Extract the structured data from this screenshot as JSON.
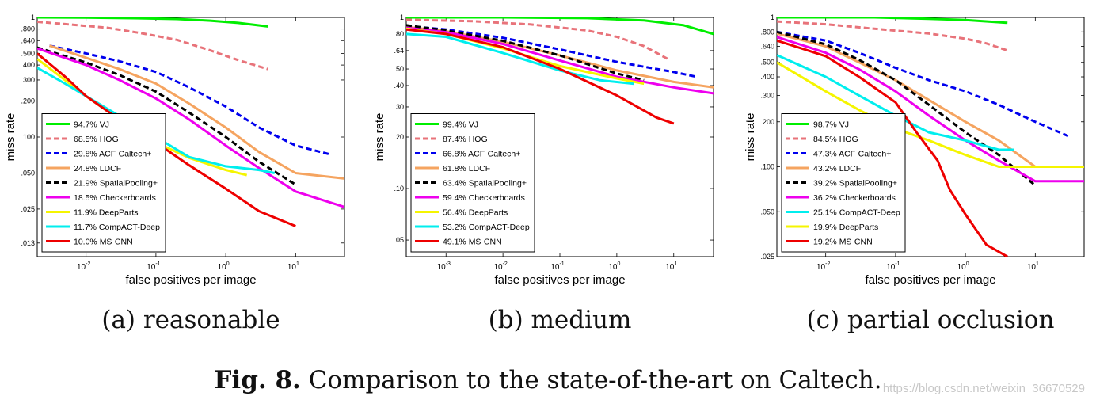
{
  "figure": {
    "fig_label": "Fig. 8.",
    "caption": "Comparison to the state-of-the-art on Caltech.",
    "watermark": "https://blog.csdn.net/weixin_36670529"
  },
  "colors": {
    "VJ": "#00ee00",
    "HOG": "#e8737a",
    "ACF-Caltech+": "#0000ee",
    "LDCF": "#f5a460",
    "SpatialPooling+": "#000000",
    "Checkerboards": "#ee00ee",
    "DeepParts": "#f5f500",
    "CompACT-Deep": "#00eeee",
    "MS-CNN": "#ee0000"
  },
  "chart_data": [
    {
      "type": "line",
      "subtitle": "(a) reasonable",
      "xlabel": "false positives per image",
      "ylabel": "miss rate",
      "xscale": "log",
      "yscale": "log",
      "xlim": [
        0.002,
        50
      ],
      "ylim": [
        0.01,
        1
      ],
      "xtick_labels": [
        "10^-2",
        "10^-1",
        "10^0",
        "10^1"
      ],
      "xtick_values": [
        0.01,
        0.1,
        1,
        10
      ],
      "ytick_labels": [
        "1",
        ".800",
        ".640",
        ".500",
        ".400",
        ".300",
        ".200",
        ".100",
        ".050",
        ".025",
        ".013"
      ],
      "ytick_values": [
        1,
        0.8,
        0.64,
        0.5,
        0.4,
        0.3,
        0.2,
        0.1,
        0.05,
        0.025,
        0.013
      ],
      "legend_position": "bottom-left",
      "series": [
        {
          "name": "94.7% VJ",
          "key": "VJ",
          "dash": "solid",
          "x": [
            0.002,
            0.01,
            0.05,
            0.2,
            0.6,
            1.5,
            4
          ],
          "y": [
            1,
            0.995,
            0.985,
            0.97,
            0.94,
            0.9,
            0.84
          ]
        },
        {
          "name": "68.5% HOG",
          "key": "HOG",
          "dash": "dash",
          "x": [
            0.002,
            0.005,
            0.02,
            0.06,
            0.2,
            0.6,
            1.5,
            4
          ],
          "y": [
            0.92,
            0.88,
            0.82,
            0.74,
            0.65,
            0.53,
            0.44,
            0.37
          ]
        },
        {
          "name": "29.8% ACF-Caltech+",
          "key": "ACF-Caltech+",
          "dash": "dash",
          "x": [
            0.003,
            0.01,
            0.03,
            0.1,
            0.3,
            1,
            3,
            10,
            30
          ],
          "y": [
            0.58,
            0.5,
            0.43,
            0.35,
            0.26,
            0.18,
            0.12,
            0.085,
            0.072
          ]
        },
        {
          "name": "24.8% LDCF",
          "key": "LDCF",
          "dash": "solid",
          "x": [
            0.003,
            0.01,
            0.03,
            0.1,
            0.3,
            1,
            3,
            10,
            50
          ],
          "y": [
            0.58,
            0.46,
            0.37,
            0.28,
            0.19,
            0.12,
            0.075,
            0.05,
            0.045
          ]
        },
        {
          "name": "21.9% SpatialPooling+",
          "key": "SpatialPooling+",
          "dash": "dash",
          "x": [
            0.002,
            0.01,
            0.03,
            0.1,
            0.3,
            1,
            3,
            10
          ],
          "y": [
            0.56,
            0.42,
            0.33,
            0.24,
            0.16,
            0.1,
            0.062,
            0.04
          ]
        },
        {
          "name": "18.5% Checkerboards",
          "key": "Checkerboards",
          "dash": "solid",
          "x": [
            0.002,
            0.01,
            0.03,
            0.1,
            0.3,
            1,
            3,
            10,
            50
          ],
          "y": [
            0.55,
            0.4,
            0.3,
            0.21,
            0.14,
            0.085,
            0.055,
            0.035,
            0.026
          ]
        },
        {
          "name": "11.9% DeepParts",
          "key": "DeepParts",
          "dash": "solid",
          "x": [
            0.002,
            0.005,
            0.01,
            0.03,
            0.1,
            0.3,
            1,
            2
          ],
          "y": [
            0.45,
            0.3,
            0.22,
            0.14,
            0.09,
            0.067,
            0.053,
            0.048
          ]
        },
        {
          "name": "11.7% CompACT-Deep",
          "key": "CompACT-Deep",
          "dash": "solid",
          "x": [
            0.002,
            0.005,
            0.01,
            0.03,
            0.1,
            0.3,
            1,
            3,
            5
          ],
          "y": [
            0.38,
            0.28,
            0.22,
            0.15,
            0.1,
            0.068,
            0.057,
            0.053,
            0.05
          ]
        },
        {
          "name": "10.0% MS-CNN",
          "key": "MS-CNN",
          "dash": "solid",
          "x": [
            0.002,
            0.005,
            0.01,
            0.03,
            0.1,
            0.3,
            1,
            3,
            10
          ],
          "y": [
            0.5,
            0.32,
            0.22,
            0.14,
            0.09,
            0.058,
            0.037,
            0.024,
            0.018
          ]
        }
      ]
    },
    {
      "type": "line",
      "subtitle": "(b) medium",
      "xlabel": "false positives per image",
      "ylabel": "miss rate",
      "xscale": "log",
      "yscale": "log",
      "xlim": [
        0.0002,
        50
      ],
      "ylim": [
        0.04,
        1
      ],
      "xtick_labels": [
        "10^-3",
        "10^-2",
        "10^-1",
        "10^0",
        "10^1"
      ],
      "xtick_values": [
        0.001,
        0.01,
        0.1,
        1,
        10
      ],
      "ytick_labels": [
        "1",
        ".80",
        ".64",
        ".50",
        ".40",
        ".30",
        ".20",
        ".10",
        ".05"
      ],
      "ytick_values": [
        1,
        0.8,
        0.64,
        0.5,
        0.4,
        0.3,
        0.2,
        0.1,
        0.05
      ],
      "legend_position": "bottom-left",
      "series": [
        {
          "name": "99.4% VJ",
          "key": "VJ",
          "dash": "solid",
          "x": [
            0.0002,
            0.01,
            0.3,
            3,
            15,
            50
          ],
          "y": [
            1,
            1,
            0.99,
            0.96,
            0.9,
            0.8
          ]
        },
        {
          "name": "87.4% HOG",
          "key": "HOG",
          "dash": "dash",
          "x": [
            0.0002,
            0.003,
            0.03,
            0.3,
            1,
            3,
            8
          ],
          "y": [
            0.97,
            0.95,
            0.91,
            0.84,
            0.77,
            0.68,
            0.57
          ]
        },
        {
          "name": "66.8% ACF-Caltech+",
          "key": "ACF-Caltech+",
          "dash": "dash",
          "x": [
            0.0002,
            0.001,
            0.01,
            0.1,
            1,
            10,
            25
          ],
          "y": [
            0.89,
            0.85,
            0.76,
            0.65,
            0.55,
            0.48,
            0.45
          ]
        },
        {
          "name": "61.8% LDCF",
          "key": "LDCF",
          "dash": "solid",
          "x": [
            0.0002,
            0.001,
            0.01,
            0.1,
            1,
            10,
            50
          ],
          "y": [
            0.88,
            0.83,
            0.72,
            0.6,
            0.49,
            0.42,
            0.39
          ]
        },
        {
          "name": "63.4% SpatialPooling+",
          "key": "SpatialPooling+",
          "dash": "dash",
          "x": [
            0.0002,
            0.001,
            0.01,
            0.1,
            1,
            3
          ],
          "y": [
            0.9,
            0.84,
            0.73,
            0.6,
            0.47,
            0.43
          ]
        },
        {
          "name": "59.4% Checkerboards",
          "key": "Checkerboards",
          "dash": "solid",
          "x": [
            0.0002,
            0.001,
            0.01,
            0.1,
            1,
            10,
            50
          ],
          "y": [
            0.87,
            0.82,
            0.7,
            0.56,
            0.45,
            0.39,
            0.36
          ]
        },
        {
          "name": "56.4% DeepParts",
          "key": "DeepParts",
          "dash": "solid",
          "x": [
            0.0002,
            0.001,
            0.01,
            0.1,
            1,
            3
          ],
          "y": [
            0.86,
            0.8,
            0.66,
            0.52,
            0.44,
            0.41
          ]
        },
        {
          "name": "53.2% CompACT-Deep",
          "key": "CompACT-Deep",
          "dash": "solid",
          "x": [
            0.0002,
            0.001,
            0.01,
            0.1,
            0.5,
            2
          ],
          "y": [
            0.8,
            0.77,
            0.62,
            0.49,
            0.43,
            0.41
          ]
        },
        {
          "name": "49.1% MS-CNN",
          "key": "MS-CNN",
          "dash": "solid",
          "x": [
            0.0002,
            0.001,
            0.01,
            0.1,
            1,
            5,
            10
          ],
          "y": [
            0.85,
            0.8,
            0.67,
            0.5,
            0.35,
            0.26,
            0.24
          ]
        }
      ]
    },
    {
      "type": "line",
      "subtitle": "(c) partial occlusion",
      "xlabel": "false positives per image",
      "ylabel": "miss rate",
      "xscale": "log",
      "yscale": "log",
      "xlim": [
        0.002,
        50
      ],
      "ylim": [
        0.025,
        1
      ],
      "xtick_labels": [
        "10^-2",
        "10^-1",
        "10^0",
        "10^1"
      ],
      "xtick_values": [
        0.01,
        0.1,
        1,
        10
      ],
      "ytick_labels": [
        "1",
        ".800",
        ".640",
        ".500",
        ".400",
        ".300",
        ".200",
        ".100",
        ".050",
        ".025"
      ],
      "ytick_values": [
        1,
        0.8,
        0.64,
        0.5,
        0.4,
        0.3,
        0.2,
        0.1,
        0.05,
        0.025
      ],
      "legend_position": "bottom-left",
      "series": [
        {
          "name": "98.7% VJ",
          "key": "VJ",
          "dash": "solid",
          "x": [
            0.002,
            0.05,
            0.3,
            1,
            4
          ],
          "y": [
            1,
            1,
            0.98,
            0.96,
            0.92
          ]
        },
        {
          "name": "84.5% HOG",
          "key": "HOG",
          "dash": "dash",
          "x": [
            0.002,
            0.01,
            0.05,
            0.3,
            1,
            2,
            4
          ],
          "y": [
            0.94,
            0.9,
            0.84,
            0.78,
            0.72,
            0.67,
            0.6
          ]
        },
        {
          "name": "47.3% ACF-Caltech+",
          "key": "ACF-Caltech+",
          "dash": "dash",
          "x": [
            0.002,
            0.01,
            0.03,
            0.1,
            0.3,
            1,
            3,
            10,
            30
          ],
          "y": [
            0.8,
            0.7,
            0.58,
            0.46,
            0.38,
            0.32,
            0.26,
            0.2,
            0.16
          ]
        },
        {
          "name": "43.2% LDCF",
          "key": "LDCF",
          "dash": "solid",
          "x": [
            0.002,
            0.01,
            0.03,
            0.1,
            0.3,
            1,
            3,
            10,
            50
          ],
          "y": [
            0.78,
            0.64,
            0.5,
            0.38,
            0.28,
            0.2,
            0.15,
            0.1,
            0.1
          ]
        },
        {
          "name": "39.2% SpatialPooling+",
          "key": "SpatialPooling+",
          "dash": "dash",
          "x": [
            0.002,
            0.01,
            0.03,
            0.1,
            0.3,
            1,
            3,
            10
          ],
          "y": [
            0.8,
            0.66,
            0.52,
            0.38,
            0.26,
            0.17,
            0.12,
            0.075
          ]
        },
        {
          "name": "36.2% Checkerboards",
          "key": "Checkerboards",
          "dash": "solid",
          "x": [
            0.002,
            0.01,
            0.03,
            0.1,
            0.3,
            1,
            3,
            10,
            50
          ],
          "y": [
            0.74,
            0.58,
            0.45,
            0.32,
            0.22,
            0.15,
            0.11,
            0.08,
            0.08
          ]
        },
        {
          "name": "25.1% CompACT-Deep",
          "key": "CompACT-Deep",
          "dash": "solid",
          "x": [
            0.002,
            0.01,
            0.03,
            0.1,
            0.3,
            1,
            3,
            5
          ],
          "y": [
            0.56,
            0.4,
            0.3,
            0.22,
            0.17,
            0.15,
            0.13,
            0.13
          ]
        },
        {
          "name": "19.9% DeepParts",
          "key": "DeepParts",
          "dash": "solid",
          "x": [
            0.002,
            0.01,
            0.03,
            0.1,
            0.3,
            1,
            3,
            10,
            50
          ],
          "y": [
            0.5,
            0.32,
            0.24,
            0.18,
            0.15,
            0.12,
            0.1,
            0.1,
            0.1
          ]
        },
        {
          "name": "19.2% MS-CNN",
          "key": "MS-CNN",
          "dash": "solid",
          "x": [
            0.002,
            0.01,
            0.03,
            0.1,
            0.2,
            0.4,
            0.6,
            1,
            2,
            4
          ],
          "y": [
            0.7,
            0.55,
            0.4,
            0.27,
            0.17,
            0.11,
            0.07,
            0.048,
            0.03,
            0.025
          ]
        }
      ]
    }
  ]
}
